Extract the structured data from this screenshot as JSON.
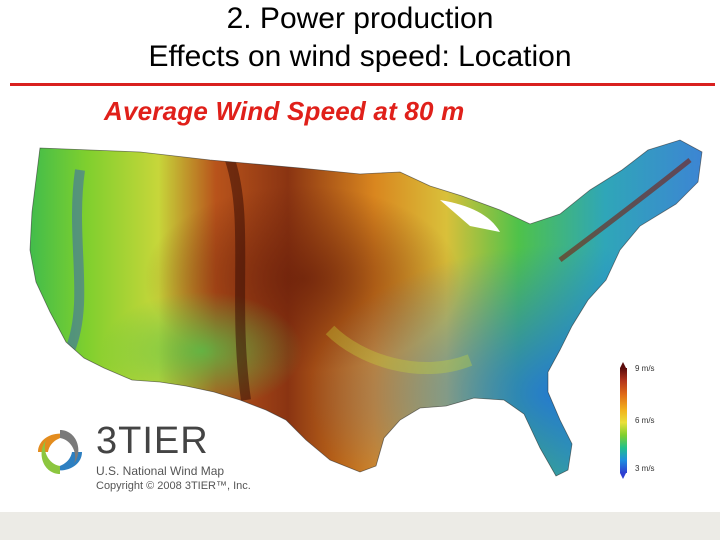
{
  "slide": {
    "title_line1": "2. Power production",
    "title_line2": "Effects on wind speed: Location"
  },
  "map": {
    "title": "Average Wind Speed at 80 m",
    "title_color": "#e0201a",
    "legend": {
      "unit": "m/s",
      "labels": [
        "9 m/s",
        "6 m/s",
        "3 m/s"
      ],
      "max_value": 9,
      "mid_value": 6,
      "min_value": 3,
      "color_high": "#5b0b0b",
      "color_mid": "#f2b21c",
      "color_low": "#2f3fd1"
    }
  },
  "brand": {
    "logo_icon": "3tier-swirl-logo",
    "name": "3TIER",
    "subtitle": "U.S. National Wind Map",
    "copyright": "Copyright © 2008 3TIER™, Inc."
  },
  "colors": {
    "accent_rule": "#d9201f",
    "footer": "#ecebe6"
  }
}
